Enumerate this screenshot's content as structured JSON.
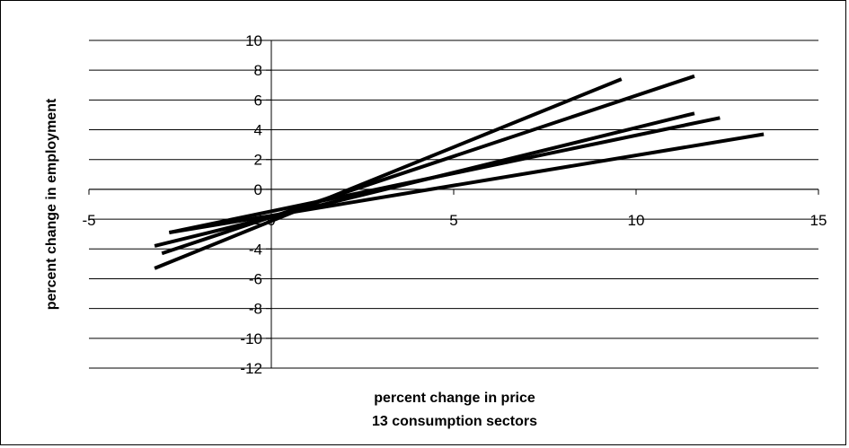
{
  "chart_data": {
    "type": "line",
    "title": "",
    "xlabel": "percent change in price",
    "xlabel_sub": "13 consumption sectors",
    "ylabel": "percent change in employment",
    "xlim": [
      -5,
      15
    ],
    "ylim": [
      -12,
      10
    ],
    "xticks": [
      -5,
      0,
      5,
      10,
      15
    ],
    "yticks": [
      10,
      8,
      6,
      4,
      2,
      0,
      -2,
      -4,
      -6,
      -8,
      -10,
      -12
    ],
    "grid": "horizontal",
    "legend": "none",
    "series": [
      {
        "x": [
          -3.2,
          9.6
        ],
        "y": [
          -5.3,
          7.4
        ]
      },
      {
        "x": [
          -3.0,
          11.6
        ],
        "y": [
          -4.3,
          7.6
        ]
      },
      {
        "x": [
          -3.2,
          11.6
        ],
        "y": [
          -3.8,
          5.1
        ]
      },
      {
        "x": [
          -2.8,
          12.3
        ],
        "y": [
          -2.9,
          4.8
        ]
      },
      {
        "x": [
          -2.8,
          13.5
        ],
        "y": [
          -2.9,
          3.7
        ]
      }
    ],
    "line_color": "#000000"
  }
}
